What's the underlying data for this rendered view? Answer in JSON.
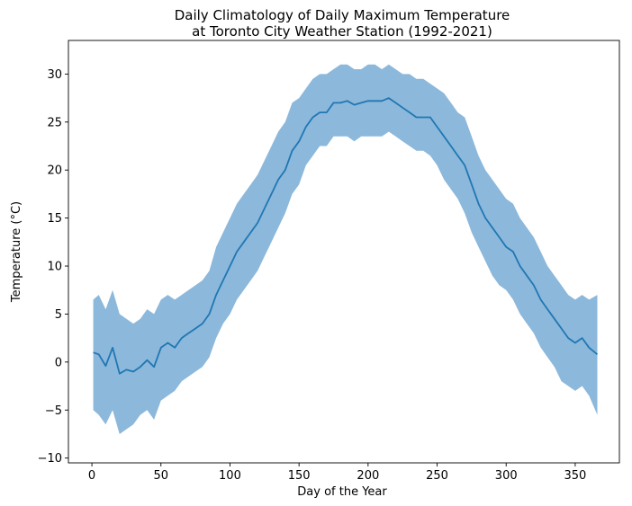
{
  "chart_data": {
    "type": "area",
    "title": "Daily Climatology of Daily Maximum Temperature\nat Toronto City Weather Station (1992-2021)",
    "xlabel": "Day of the Year",
    "ylabel": "Temperature (°C)",
    "xlim": [
      -17,
      382
    ],
    "ylim": [
      -10.5,
      33.5
    ],
    "x_ticks": [
      0,
      50,
      100,
      150,
      200,
      250,
      300,
      350
    ],
    "y_ticks": [
      -10,
      -5,
      0,
      5,
      10,
      15,
      20,
      25,
      30
    ],
    "grid": false,
    "legend": "none",
    "colors": {
      "line": "#1f77b4",
      "band": "#8cb8db"
    },
    "x": [
      1,
      5,
      10,
      15,
      20,
      25,
      30,
      35,
      40,
      45,
      50,
      55,
      60,
      65,
      70,
      75,
      80,
      85,
      90,
      95,
      100,
      105,
      110,
      115,
      120,
      125,
      130,
      135,
      140,
      145,
      150,
      155,
      160,
      165,
      170,
      175,
      180,
      185,
      190,
      195,
      200,
      205,
      210,
      215,
      220,
      225,
      230,
      235,
      240,
      245,
      250,
      255,
      260,
      265,
      270,
      275,
      280,
      285,
      290,
      295,
      300,
      305,
      310,
      315,
      320,
      325,
      330,
      335,
      340,
      345,
      350,
      355,
      360,
      366
    ],
    "series": [
      {
        "values": [
          1.0,
          0.8,
          -0.4,
          1.5,
          -1.2,
          -0.8,
          -1.0,
          -0.5,
          0.2,
          -0.5,
          1.5,
          2.0,
          1.5,
          2.5,
          3.0,
          3.5,
          4.0,
          5.0,
          7.0,
          8.5,
          10.0,
          11.5,
          12.5,
          13.5,
          14.5,
          16.0,
          17.5,
          19.0,
          20.0,
          22.0,
          23.0,
          24.5,
          25.5,
          26.0,
          26.0,
          27.0,
          27.0,
          27.2,
          26.8,
          27.0,
          27.2,
          27.2,
          27.2,
          27.5,
          27.0,
          26.5,
          26.0,
          25.5,
          25.5,
          25.5,
          24.5,
          23.5,
          22.5,
          21.5,
          20.5,
          18.5,
          16.5,
          15.0,
          14.0,
          13.0,
          12.0,
          11.5,
          10.0,
          9.0,
          8.0,
          6.5,
          5.5,
          4.5,
          3.5,
          2.5,
          2.0,
          2.5,
          1.5,
          0.8
        ]
      }
    ],
    "band_upper": [
      6.5,
      7.0,
      5.5,
      7.5,
      5.0,
      4.5,
      4.0,
      4.5,
      5.5,
      5.0,
      6.5,
      7.0,
      6.5,
      7.0,
      7.5,
      8.0,
      8.5,
      9.5,
      12.0,
      13.5,
      15.0,
      16.5,
      17.5,
      18.5,
      19.5,
      21.0,
      22.5,
      24.0,
      25.0,
      27.0,
      27.5,
      28.5,
      29.5,
      30.0,
      30.0,
      30.5,
      31.0,
      31.0,
      30.5,
      30.5,
      31.0,
      31.0,
      30.5,
      31.0,
      30.5,
      30.0,
      30.0,
      29.5,
      29.5,
      29.0,
      28.5,
      28.0,
      27.0,
      26.0,
      25.5,
      23.5,
      21.5,
      20.0,
      19.0,
      18.0,
      17.0,
      16.5,
      15.0,
      14.0,
      13.0,
      11.5,
      10.0,
      9.0,
      8.0,
      7.0,
      6.5,
      7.0,
      6.5,
      7.0
    ],
    "band_lower": [
      -5.0,
      -5.5,
      -6.5,
      -5.0,
      -7.5,
      -7.0,
      -6.5,
      -5.5,
      -5.0,
      -6.0,
      -4.0,
      -3.5,
      -3.0,
      -2.0,
      -1.5,
      -1.0,
      -0.5,
      0.5,
      2.5,
      4.0,
      5.0,
      6.5,
      7.5,
      8.5,
      9.5,
      11.0,
      12.5,
      14.0,
      15.5,
      17.5,
      18.5,
      20.5,
      21.5,
      22.5,
      22.5,
      23.5,
      23.5,
      23.5,
      23.0,
      23.5,
      23.5,
      23.5,
      23.5,
      24.0,
      23.5,
      23.0,
      22.5,
      22.0,
      22.0,
      21.5,
      20.5,
      19.0,
      18.0,
      17.0,
      15.5,
      13.5,
      12.0,
      10.5,
      9.0,
      8.0,
      7.5,
      6.5,
      5.0,
      4.0,
      3.0,
      1.5,
      0.5,
      -0.5,
      -2.0,
      -2.5,
      -3.0,
      -2.5,
      -3.5,
      -5.5
    ]
  }
}
